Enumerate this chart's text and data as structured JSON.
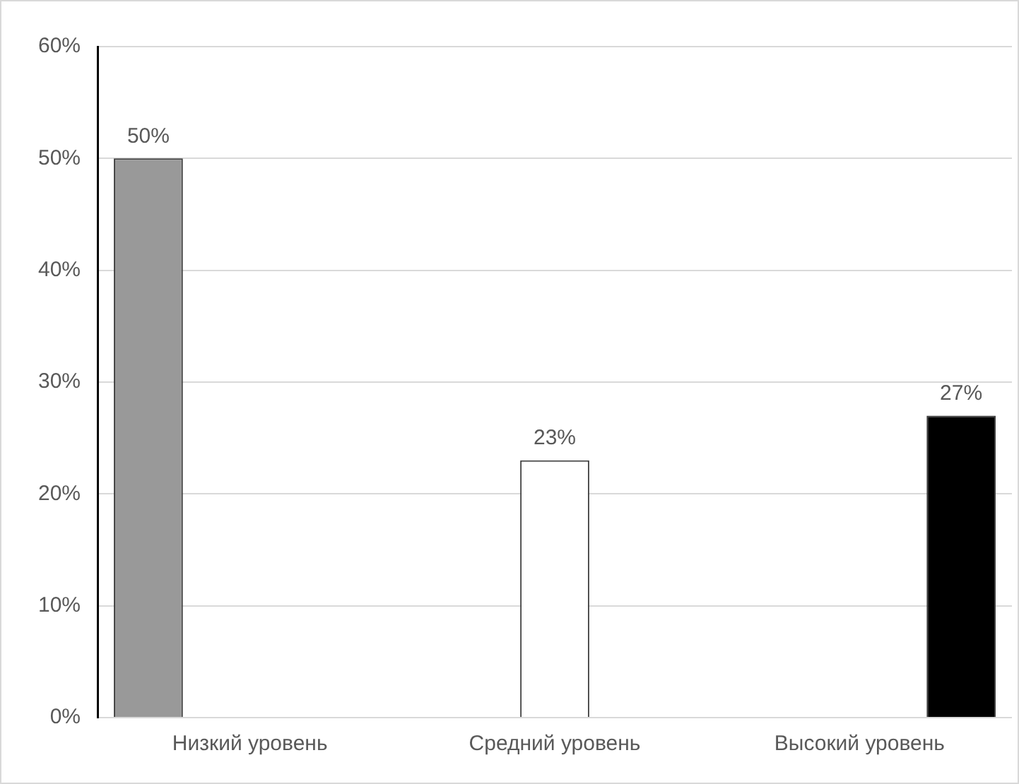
{
  "chart_data": {
    "type": "bar",
    "categories": [
      "Низкий уровень",
      "Средний уровень",
      "Высокий уровень"
    ],
    "series": [
      {
        "color": "#999999",
        "values": [
          50,
          null,
          null
        ]
      },
      {
        "color": "#ffffff",
        "values": [
          null,
          23,
          null
        ]
      },
      {
        "color": "#000000",
        "values": [
          null,
          null,
          27
        ]
      }
    ],
    "ylim": [
      0,
      60
    ],
    "yticks": [
      {
        "value": 0,
        "label": "0%"
      },
      {
        "value": 10,
        "label": "10%"
      },
      {
        "value": 20,
        "label": "20%"
      },
      {
        "value": 30,
        "label": "30%"
      },
      {
        "value": 40,
        "label": "40%"
      },
      {
        "value": 50,
        "label": "50%"
      },
      {
        "value": 60,
        "label": "60%"
      }
    ],
    "value_labels": [
      [
        "50%",
        null,
        null
      ],
      [
        null,
        "23%",
        null
      ],
      [
        null,
        null,
        "27%"
      ]
    ],
    "grid": "y",
    "legend": false
  }
}
